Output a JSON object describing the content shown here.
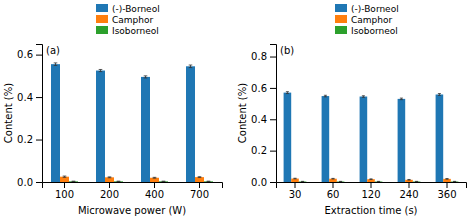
{
  "chart_data": [
    {
      "type": "bar",
      "xlabel": "Microwave power (W)",
      "ylabel": "Content (%)",
      "annotations": [
        "(a)"
      ],
      "categories": [
        "100",
        "200",
        "400",
        "700"
      ],
      "series": [
        {
          "name": "(-)-Borneol",
          "values": [
            0.555,
            0.525,
            0.495,
            0.545
          ],
          "errors": [
            0.006,
            0.005,
            0.005,
            0.006
          ]
        },
        {
          "name": "Camphor",
          "values": [
            0.025,
            0.022,
            0.02,
            0.023
          ],
          "errors": [
            0.003,
            0.002,
            0.002,
            0.002
          ]
        },
        {
          "name": "Isoborneol",
          "values": [
            0.003,
            0.003,
            0.003,
            0.003
          ],
          "errors": [
            0.001,
            0.001,
            0.001,
            0.001
          ]
        }
      ],
      "ylim": [
        0,
        0.65
      ],
      "yticks": [
        {
          "value": 0.0,
          "label": "0.0"
        },
        0.2,
        0.4,
        0.6
      ],
      "grid": false,
      "legend": "top"
    },
    {
      "type": "bar",
      "xlabel": "Extraction time (s)",
      "ylabel": "Content (%)",
      "annotations": [
        "(b)"
      ],
      "categories": [
        "30",
        "60",
        "120",
        "240",
        "360"
      ],
      "series": [
        {
          "name": "(-)-Borneol",
          "values": [
            0.57,
            0.548,
            0.545,
            0.53,
            0.558
          ],
          "errors": [
            0.006,
            0.005,
            0.005,
            0.005,
            0.006
          ]
        },
        {
          "name": "Camphor",
          "values": [
            0.022,
            0.021,
            0.018,
            0.014,
            0.02
          ],
          "errors": [
            0.002,
            0.002,
            0.002,
            0.002,
            0.002
          ]
        },
        {
          "name": "Isoborneol",
          "values": [
            0.003,
            0.003,
            0.003,
            0.003,
            0.003
          ],
          "errors": [
            0.001,
            0.001,
            0.001,
            0.001,
            0.001
          ]
        }
      ],
      "ylim": [
        0,
        0.88
      ],
      "yticks": [
        {
          "value": 0.0,
          "label": "0.0"
        },
        0.2,
        0.4,
        0.6,
        0.8
      ],
      "grid": false,
      "legend": "top"
    }
  ]
}
